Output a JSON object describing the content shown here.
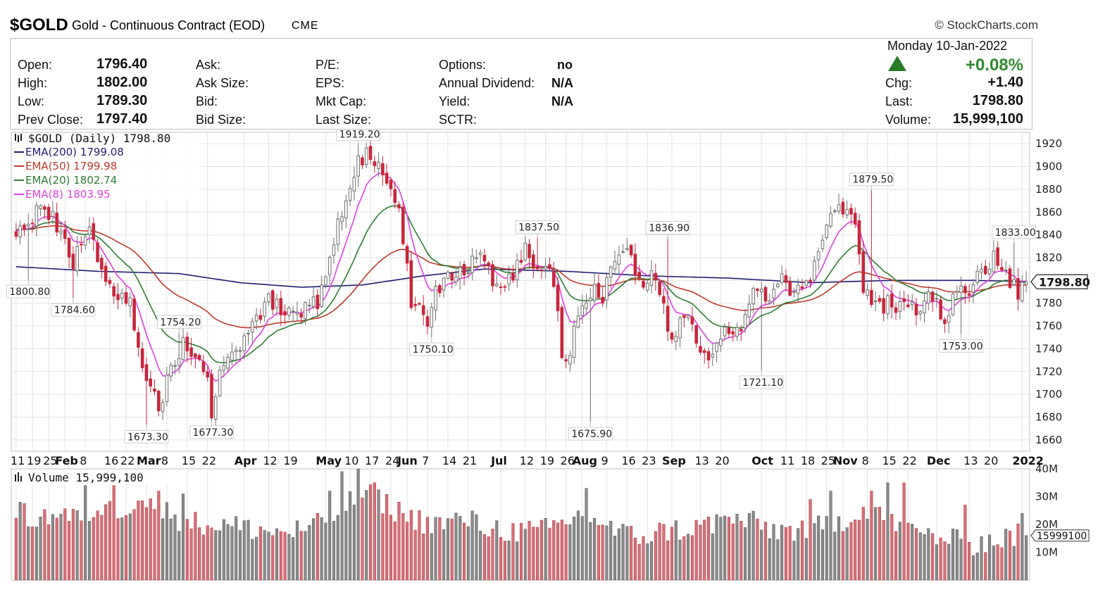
{
  "header": {
    "symbol": "$GOLD",
    "description": "Gold - Continuous Contract (EOD)",
    "exchange": "CME",
    "copyright": "© StockCharts.com"
  },
  "quote": {
    "date_line": "Monday  10-Jan-2022",
    "open_label": "Open:",
    "open": "1796.40",
    "high_label": "High:",
    "high": "1802.00",
    "low_label": "Low:",
    "low": "1789.30",
    "prev_label": "Prev Close:",
    "prev": "1797.40",
    "ask_label": "Ask:",
    "ask_size_label": "Ask Size:",
    "bid_label": "Bid:",
    "bid_size_label": "Bid Size:",
    "pe_label": "P/E:",
    "eps_label": "EPS:",
    "mktcap_label": "Mkt Cap:",
    "lastsize_label": "Last Size:",
    "options_label": "Options:",
    "options": "no",
    "div_label": "Annual Dividend:",
    "div": "N/A",
    "yield_label": "Yield:",
    "yield": "N/A",
    "sctr_label": "SCTR:",
    "pct_change": "+0.08%",
    "chg_label": "Chg:",
    "chg": "+1.40",
    "last_label": "Last:",
    "last": "1798.80",
    "volume_label": "Volume:",
    "volume": "15,999,100"
  },
  "chart_data": {
    "type": "candlestick",
    "panel_title": "$GOLD (Daily) 1798.80",
    "legend": [
      {
        "label": "EMA(200) 1799.08",
        "color": "#1f1f73"
      },
      {
        "label": "EMA(50) 1799.98",
        "color": "#c0392b"
      },
      {
        "label": "EMA(20) 1802.74",
        "color": "#2e7d32"
      },
      {
        "label": "EMA(8) 1803.95",
        "color": "#e040e0"
      }
    ],
    "ylim": [
      1650,
      1930
    ],
    "y_ticks": [
      1660,
      1680,
      1700,
      1720,
      1740,
      1760,
      1780,
      1800,
      1820,
      1840,
      1860,
      1880,
      1900,
      1920
    ],
    "last_price_label": "1798.80",
    "x_ticks": [
      {
        "label": "11",
        "bold": false,
        "d": 0
      },
      {
        "label": "19",
        "bold": false,
        "d": 4
      },
      {
        "label": "25",
        "bold": false,
        "d": 8
      },
      {
        "label": "Feb",
        "bold": true,
        "d": 12
      },
      {
        "label": "8",
        "bold": false,
        "d": 17
      },
      {
        "label": "16",
        "bold": false,
        "d": 23
      },
      {
        "label": "22",
        "bold": false,
        "d": 27
      },
      {
        "label": "Mar",
        "bold": true,
        "d": 32
      },
      {
        "label": "8",
        "bold": false,
        "d": 37
      },
      {
        "label": "15",
        "bold": false,
        "d": 42
      },
      {
        "label": "22",
        "bold": false,
        "d": 47
      },
      {
        "label": "Apr",
        "bold": true,
        "d": 56
      },
      {
        "label": "12",
        "bold": false,
        "d": 62
      },
      {
        "label": "19",
        "bold": false,
        "d": 67
      },
      {
        "label": "May",
        "bold": true,
        "d": 76
      },
      {
        "label": "10",
        "bold": false,
        "d": 82
      },
      {
        "label": "17",
        "bold": false,
        "d": 87
      },
      {
        "label": "24",
        "bold": false,
        "d": 92
      },
      {
        "label": "Jun",
        "bold": true,
        "d": 96
      },
      {
        "label": "7",
        "bold": false,
        "d": 101
      },
      {
        "label": "14",
        "bold": false,
        "d": 106
      },
      {
        "label": "21",
        "bold": false,
        "d": 111
      },
      {
        "label": "Jul",
        "bold": true,
        "d": 119
      },
      {
        "label": "12",
        "bold": false,
        "d": 125
      },
      {
        "label": "19",
        "bold": false,
        "d": 130
      },
      {
        "label": "26",
        "bold": false,
        "d": 135
      },
      {
        "label": "Aug",
        "bold": true,
        "d": 139
      },
      {
        "label": "9",
        "bold": false,
        "d": 145
      },
      {
        "label": "16",
        "bold": false,
        "d": 150
      },
      {
        "label": "23",
        "bold": false,
        "d": 155
      },
      {
        "label": "Sep",
        "bold": true,
        "d": 161
      },
      {
        "label": "13",
        "bold": false,
        "d": 168
      },
      {
        "label": "20",
        "bold": false,
        "d": 173
      },
      {
        "label": "Oct",
        "bold": true,
        "d": 183
      },
      {
        "label": "11",
        "bold": false,
        "d": 189
      },
      {
        "label": "18",
        "bold": false,
        "d": 194
      },
      {
        "label": "25",
        "bold": false,
        "d": 199
      },
      {
        "label": "Nov",
        "bold": true,
        "d": 203
      },
      {
        "label": "8",
        "bold": false,
        "d": 209
      },
      {
        "label": "15",
        "bold": false,
        "d": 214
      },
      {
        "label": "22",
        "bold": false,
        "d": 219
      },
      {
        "label": "Dec",
        "bold": true,
        "d": 226
      },
      {
        "label": "13",
        "bold": false,
        "d": 234
      },
      {
        "label": "20",
        "bold": false,
        "d": 239
      },
      {
        "label": "2022",
        "bold": true,
        "d": 247
      }
    ],
    "annotations": [
      {
        "label": "1800.80",
        "d": 3,
        "value": 1800.8,
        "pos": "below"
      },
      {
        "label": "1784.60",
        "d": 14,
        "value": 1784.6,
        "pos": "below"
      },
      {
        "label": "1673.30",
        "d": 32,
        "value": 1673.3,
        "pos": "below"
      },
      {
        "label": "1754.20",
        "d": 40,
        "value": 1754.2,
        "pos": "above"
      },
      {
        "label": "1677.30",
        "d": 48,
        "value": 1677.3,
        "pos": "below"
      },
      {
        "label": "1919.20",
        "d": 84,
        "value": 1919.2,
        "pos": "above"
      },
      {
        "label": "1750.10",
        "d": 102,
        "value": 1750.1,
        "pos": "below"
      },
      {
        "label": "1837.50",
        "d": 128,
        "value": 1837.5,
        "pos": "above"
      },
      {
        "label": "1675.90",
        "d": 141,
        "value": 1675.9,
        "pos": "below"
      },
      {
        "label": "1836.90",
        "d": 160,
        "value": 1836.9,
        "pos": "above"
      },
      {
        "label": "1721.10",
        "d": 183,
        "value": 1721.1,
        "pos": "below"
      },
      {
        "label": "1879.50",
        "d": 210,
        "value": 1879.5,
        "pos": "above"
      },
      {
        "label": "1753.00",
        "d": 232,
        "value": 1753.0,
        "pos": "below"
      },
      {
        "label": "1833.00",
        "d": 245,
        "value": 1833.0,
        "pos": "above"
      }
    ],
    "price_anchors": [
      [
        0,
        1846,
        1842
      ],
      [
        3,
        1840,
        1850
      ],
      [
        6,
        1856,
        1870
      ],
      [
        9,
        1864,
        1855
      ],
      [
        12,
        1850,
        1838
      ],
      [
        14,
        1838,
        1816
      ],
      [
        16,
        1818,
        1830
      ],
      [
        18,
        1832,
        1842
      ],
      [
        20,
        1838,
        1822
      ],
      [
        22,
        1820,
        1804
      ],
      [
        24,
        1802,
        1780
      ],
      [
        26,
        1778,
        1792
      ],
      [
        28,
        1790,
        1780
      ],
      [
        30,
        1780,
        1738
      ],
      [
        32,
        1736,
        1712
      ],
      [
        34,
        1712,
        1698
      ],
      [
        35,
        1698,
        1680
      ],
      [
        37,
        1682,
        1712
      ],
      [
        39,
        1712,
        1730
      ],
      [
        41,
        1730,
        1744
      ],
      [
        43,
        1744,
        1736
      ],
      [
        45,
        1736,
        1728
      ],
      [
        47,
        1728,
        1712
      ],
      [
        48,
        1712,
        1685
      ],
      [
        50,
        1686,
        1718
      ],
      [
        53,
        1718,
        1740
      ],
      [
        56,
        1740,
        1746
      ],
      [
        59,
        1746,
        1768
      ],
      [
        62,
        1768,
        1782
      ],
      [
        65,
        1782,
        1776
      ],
      [
        68,
        1776,
        1770
      ],
      [
        71,
        1770,
        1776
      ],
      [
        74,
        1776,
        1782
      ],
      [
        76,
        1782,
        1810
      ],
      [
        79,
        1810,
        1848
      ],
      [
        82,
        1848,
        1878
      ],
      [
        84,
        1878,
        1905
      ],
      [
        86,
        1905,
        1910
      ],
      [
        88,
        1910,
        1898
      ],
      [
        90,
        1898,
        1896
      ],
      [
        92,
        1896,
        1880
      ],
      [
        94,
        1880,
        1860
      ],
      [
        96,
        1860,
        1818
      ],
      [
        97,
        1818,
        1772
      ],
      [
        99,
        1772,
        1778
      ],
      [
        101,
        1778,
        1764
      ],
      [
        103,
        1764,
        1788
      ],
      [
        105,
        1788,
        1800
      ],
      [
        108,
        1800,
        1808
      ],
      [
        111,
        1808,
        1812
      ],
      [
        114,
        1812,
        1820
      ],
      [
        117,
        1820,
        1802
      ],
      [
        120,
        1802,
        1796
      ],
      [
        123,
        1796,
        1812
      ],
      [
        125,
        1812,
        1826
      ],
      [
        127,
        1826,
        1815
      ],
      [
        129,
        1815,
        1812
      ],
      [
        131,
        1812,
        1808
      ],
      [
        133,
        1808,
        1775
      ],
      [
        134,
        1775,
        1728
      ],
      [
        136,
        1728,
        1740
      ],
      [
        138,
        1740,
        1770
      ],
      [
        140,
        1770,
        1782
      ],
      [
        142,
        1782,
        1790
      ],
      [
        144,
        1790,
        1786
      ],
      [
        146,
        1786,
        1806
      ],
      [
        148,
        1806,
        1818
      ],
      [
        150,
        1818,
        1826
      ],
      [
        152,
        1826,
        1810
      ],
      [
        154,
        1810,
        1796
      ],
      [
        156,
        1796,
        1806
      ],
      [
        158,
        1806,
        1790
      ],
      [
        160,
        1790,
        1758
      ],
      [
        162,
        1758,
        1752
      ],
      [
        164,
        1752,
        1770
      ],
      [
        166,
        1770,
        1758
      ],
      [
        168,
        1758,
        1735
      ],
      [
        170,
        1735,
        1728
      ],
      [
        172,
        1728,
        1748
      ],
      [
        174,
        1748,
        1760
      ],
      [
        176,
        1760,
        1756
      ],
      [
        178,
        1756,
        1762
      ],
      [
        180,
        1762,
        1776
      ],
      [
        182,
        1776,
        1796
      ],
      [
        184,
        1796,
        1782
      ],
      [
        186,
        1782,
        1792
      ],
      [
        188,
        1792,
        1800
      ],
      [
        190,
        1800,
        1790
      ],
      [
        192,
        1790,
        1802
      ],
      [
        194,
        1802,
        1796
      ],
      [
        196,
        1796,
        1812
      ],
      [
        198,
        1812,
        1838
      ],
      [
        200,
        1838,
        1862
      ],
      [
        202,
        1862,
        1866
      ],
      [
        204,
        1866,
        1858
      ],
      [
        206,
        1858,
        1846
      ],
      [
        208,
        1846,
        1792
      ],
      [
        210,
        1792,
        1784
      ],
      [
        212,
        1784,
        1776
      ],
      [
        214,
        1776,
        1780
      ],
      [
        216,
        1780,
        1768
      ],
      [
        218,
        1768,
        1784
      ],
      [
        220,
        1784,
        1778
      ],
      [
        222,
        1778,
        1772
      ],
      [
        224,
        1772,
        1786
      ],
      [
        226,
        1786,
        1782
      ],
      [
        228,
        1782,
        1762
      ],
      [
        230,
        1762,
        1790
      ],
      [
        232,
        1790,
        1798
      ],
      [
        234,
        1798,
        1792
      ],
      [
        236,
        1792,
        1804
      ],
      [
        238,
        1804,
        1812
      ],
      [
        240,
        1812,
        1820
      ],
      [
        242,
        1820,
        1814
      ],
      [
        244,
        1814,
        1800
      ],
      [
        246,
        1800,
        1790
      ],
      [
        248,
        1790,
        1798.8
      ]
    ],
    "ema200_points": [
      [
        0,
        1812
      ],
      [
        20,
        1808
      ],
      [
        40,
        1806
      ],
      [
        55,
        1798
      ],
      [
        70,
        1794
      ],
      [
        85,
        1796
      ],
      [
        100,
        1804
      ],
      [
        115,
        1810
      ],
      [
        135,
        1808
      ],
      [
        155,
        1804
      ],
      [
        175,
        1802
      ],
      [
        195,
        1798
      ],
      [
        215,
        1800
      ],
      [
        235,
        1800
      ],
      [
        248,
        1799.08
      ]
    ],
    "volume_panel": {
      "title": "Volume 15,999,100",
      "ylim": [
        0,
        40000000
      ],
      "y_ticks": [
        {
          "v": 10000000,
          "label": "10M"
        },
        {
          "v": 20000000,
          "label": "20M"
        },
        {
          "v": 30000000,
          "label": "30M"
        },
        {
          "v": 40000000,
          "label": "40M"
        }
      ],
      "last_label": "15999100",
      "anchors_millions": [
        [
          0,
          24
        ],
        [
          5,
          22
        ],
        [
          10,
          24
        ],
        [
          15,
          22
        ],
        [
          20,
          26
        ],
        [
          25,
          24
        ],
        [
          30,
          30
        ],
        [
          35,
          26
        ],
        [
          40,
          22
        ],
        [
          45,
          20
        ],
        [
          50,
          20
        ],
        [
          55,
          19
        ],
        [
          60,
          18
        ],
        [
          65,
          17
        ],
        [
          70,
          18
        ],
        [
          75,
          20
        ],
        [
          80,
          26
        ],
        [
          84,
          30
        ],
        [
          88,
          30
        ],
        [
          92,
          26
        ],
        [
          96,
          23
        ],
        [
          100,
          21
        ],
        [
          105,
          20
        ],
        [
          110,
          22
        ],
        [
          115,
          19
        ],
        [
          120,
          18
        ],
        [
          125,
          17
        ],
        [
          130,
          18
        ],
        [
          135,
          21
        ],
        [
          140,
          24
        ],
        [
          145,
          19
        ],
        [
          150,
          16
        ],
        [
          155,
          16
        ],
        [
          160,
          18
        ],
        [
          165,
          18
        ],
        [
          170,
          20
        ],
        [
          175,
          22
        ],
        [
          180,
          21
        ],
        [
          185,
          18
        ],
        [
          190,
          18
        ],
        [
          195,
          18
        ],
        [
          200,
          20
        ],
        [
          205,
          23
        ],
        [
          210,
          27
        ],
        [
          215,
          20
        ],
        [
          220,
          17
        ],
        [
          225,
          16
        ],
        [
          230,
          14
        ],
        [
          235,
          13
        ],
        [
          240,
          14
        ],
        [
          245,
          16
        ],
        [
          248,
          16
        ]
      ],
      "spikes_millions": [
        [
          1,
          28
        ],
        [
          17,
          34
        ],
        [
          24,
          34
        ],
        [
          35,
          32
        ],
        [
          41,
          31
        ],
        [
          77,
          32
        ],
        [
          80,
          39
        ],
        [
          84,
          40
        ],
        [
          88,
          35
        ],
        [
          140,
          33
        ],
        [
          195,
          29
        ],
        [
          200,
          32
        ],
        [
          210,
          32
        ],
        [
          214,
          35
        ],
        [
          218,
          35
        ],
        [
          233,
          27
        ],
        [
          247,
          24
        ]
      ]
    },
    "colors": {
      "up": "#6e6e6e",
      "down": "#c8263b",
      "up_vol": "#8a8a8a",
      "down_vol": "#d6707a",
      "ema200": "#1f1f73",
      "ema50": "#c0392b",
      "ema20": "#2e7d32",
      "ema8": "#e040e0",
      "grid": "#e3e3e3"
    }
  }
}
